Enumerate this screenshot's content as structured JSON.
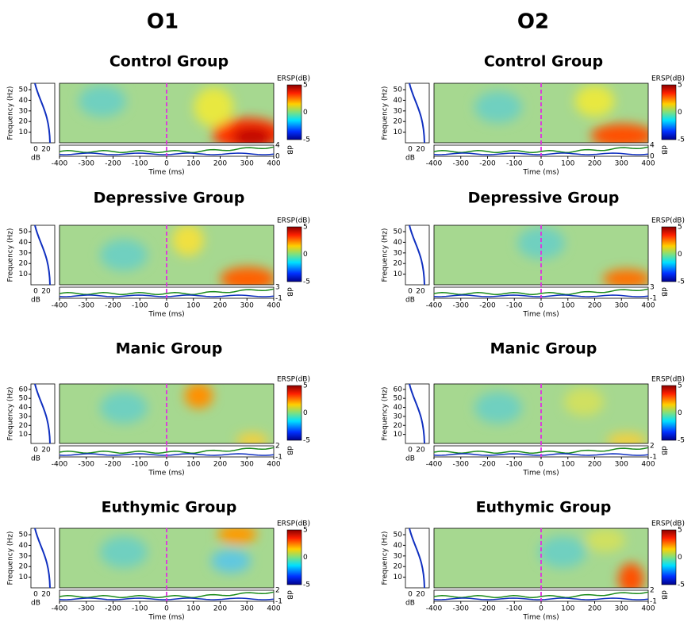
{
  "columns": [
    {
      "title": "O1",
      "panels": [
        {
          "title": "Control Group",
          "ylim": [
            0,
            56
          ],
          "yticks": [
            10,
            20,
            30,
            40,
            50
          ],
          "trace_ticks": [
            4,
            0
          ]
        },
        {
          "title": "Depressive Group",
          "ylim": [
            0,
            56
          ],
          "yticks": [
            10,
            20,
            30,
            40,
            50
          ],
          "trace_ticks": [
            3,
            -1
          ]
        },
        {
          "title": "Manic Group",
          "ylim": [
            0,
            66
          ],
          "yticks": [
            10,
            20,
            30,
            40,
            50,
            60
          ],
          "trace_ticks": [
            2,
            -1
          ]
        },
        {
          "title": "Euthymic Group",
          "ylim": [
            0,
            56
          ],
          "yticks": [
            10,
            20,
            30,
            40,
            50
          ],
          "trace_ticks": [
            2,
            -1
          ]
        }
      ]
    },
    {
      "title": "O2",
      "panels": [
        {
          "title": "Control Group",
          "ylim": [
            0,
            56
          ],
          "yticks": [
            10,
            20,
            30,
            40,
            50
          ],
          "trace_ticks": [
            4,
            0
          ]
        },
        {
          "title": "Depressive Group",
          "ylim": [
            0,
            56
          ],
          "yticks": [
            10,
            20,
            30,
            40,
            50
          ],
          "trace_ticks": [
            3,
            -1
          ]
        },
        {
          "title": "Manic Group",
          "ylim": [
            0,
            66
          ],
          "yticks": [
            10,
            20,
            30,
            40,
            50,
            60
          ],
          "trace_ticks": [
            2,
            -1
          ]
        },
        {
          "title": "Euthymic Group",
          "ylim": [
            0,
            56
          ],
          "yticks": [
            10,
            20,
            30,
            40,
            50
          ],
          "trace_ticks": [
            2,
            -1
          ]
        }
      ]
    }
  ],
  "axes": {
    "y_label": "Frequency (Hz)",
    "x_label": "Time (ms)",
    "colorbar_label": "ERSP(dB)",
    "db_label": "dB",
    "xlim": [
      -400,
      400
    ],
    "xticks": [
      -400,
      -300,
      -200,
      -100,
      0,
      100,
      200,
      300,
      400
    ],
    "colorbar_ticks": [
      5,
      0,
      -5
    ],
    "marginal_ticks": [
      0,
      20
    ]
  }
}
